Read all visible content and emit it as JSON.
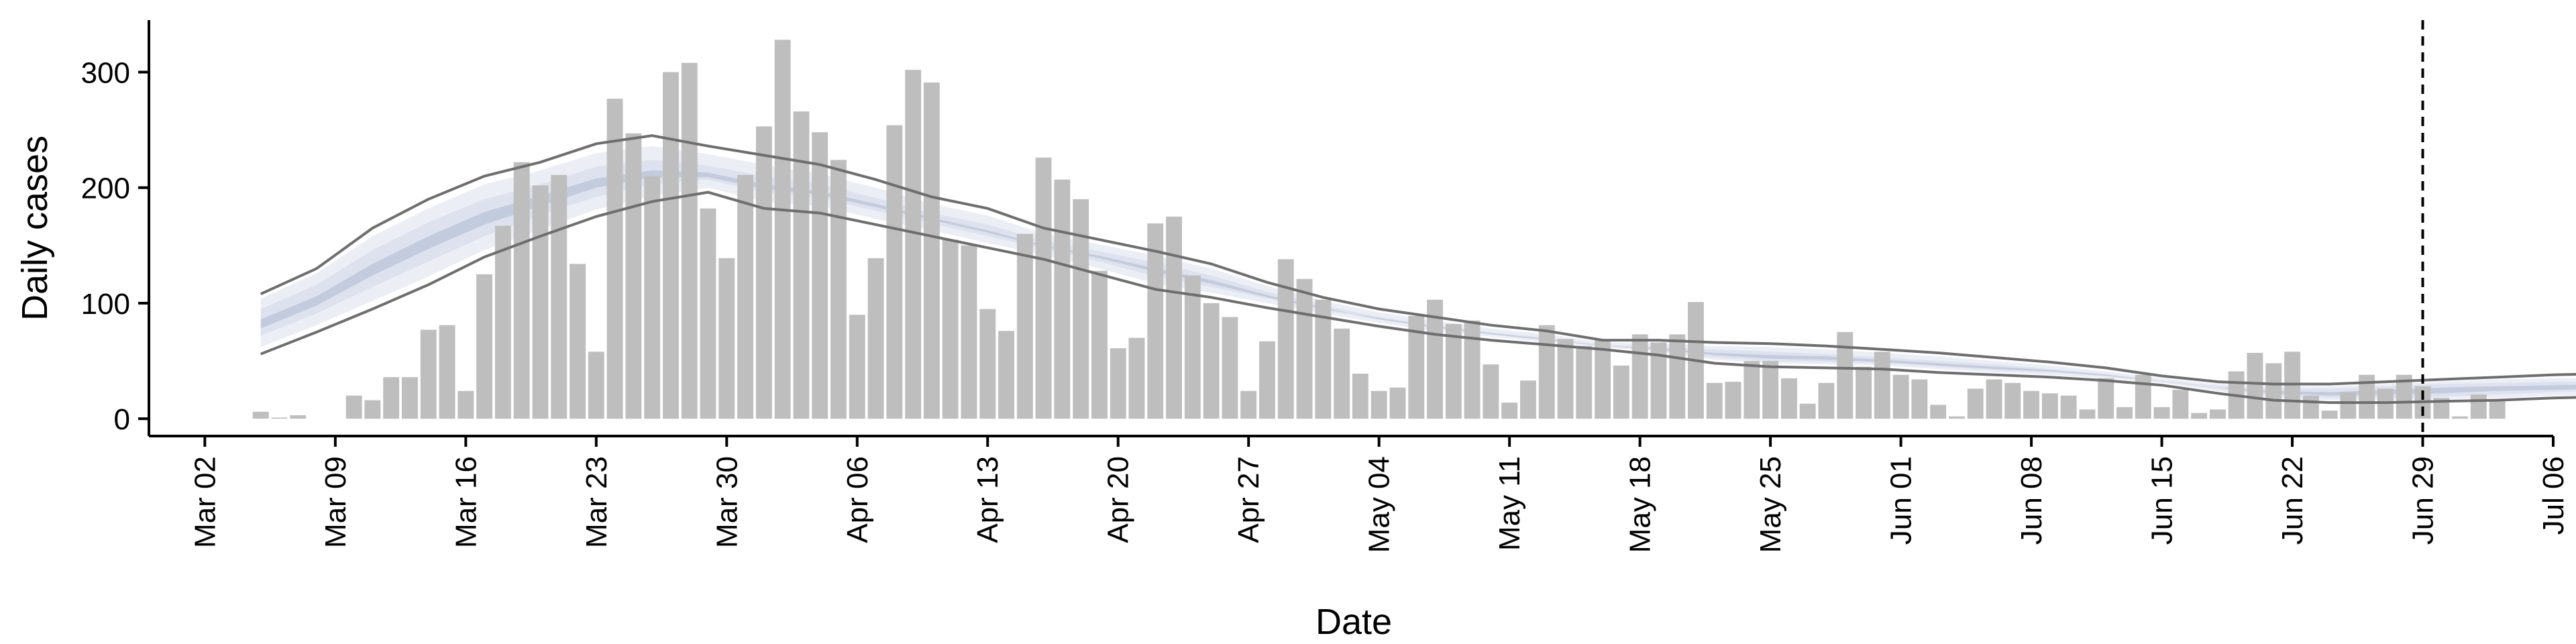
{
  "chart_data": {
    "type": "bar",
    "xlabel": "Date",
    "ylabel": "Daily cases",
    "x_ticks": [
      "Mar 02",
      "Mar 09",
      "Mar 16",
      "Mar 23",
      "Mar 30",
      "Apr 06",
      "Apr 13",
      "Apr 20",
      "Apr 27",
      "May 04",
      "May 11",
      "May 18",
      "May 25",
      "Jun 01",
      "Jun 08",
      "Jun 15",
      "Jun 22",
      "Jun 29",
      "Jul 06"
    ],
    "y_ticks": [
      "0",
      "100",
      "200",
      "300"
    ],
    "ylim": [
      -15,
      345
    ],
    "xlim": [
      "2020-02-28",
      "2020-07-06"
    ],
    "grid": false,
    "cutoff_date": "2020-06-29",
    "colors": {
      "bars": "#bebebe",
      "band_outer": "#eceef5",
      "band_mid": "#dde2ee",
      "band_inner": "#c3cbde",
      "interval_lines": "#6e6e6e"
    },
    "bar_start_date": "2020-03-05",
    "bar_values": [
      6,
      1,
      3,
      0,
      0,
      20,
      16,
      36,
      36,
      77,
      81,
      24,
      125,
      167,
      222,
      202,
      211,
      134,
      58,
      277,
      247,
      210,
      300,
      308,
      182,
      139,
      211,
      253,
      328,
      266,
      248,
      224,
      90,
      139,
      254,
      302,
      291,
      155,
      150,
      95,
      76,
      160,
      226,
      207,
      190,
      128,
      61,
      70,
      169,
      175,
      124,
      100,
      88,
      24,
      67,
      138,
      121,
      103,
      78,
      39,
      24,
      27,
      89,
      103,
      82,
      85,
      47,
      14,
      33,
      81,
      69,
      63,
      68,
      46,
      73,
      66,
      73,
      101,
      31,
      32,
      50,
      50,
      35,
      13,
      31,
      75,
      45,
      58,
      38,
      34,
      12,
      2,
      26,
      34,
      31,
      24,
      22,
      20,
      8,
      35,
      10,
      38,
      10,
      25,
      5,
      8,
      41,
      57,
      48,
      58,
      20,
      7,
      23,
      38,
      26,
      38,
      28,
      18,
      2,
      21,
      16
    ],
    "band_start_date": "2020-03-05",
    "band_end_date": "2020-06-19",
    "upper_line": [
      [
        0,
        108
      ],
      [
        3,
        130
      ],
      [
        6,
        165
      ],
      [
        9,
        190
      ],
      [
        12,
        210
      ],
      [
        15,
        222
      ],
      [
        18,
        238
      ],
      [
        21,
        245
      ],
      [
        24,
        236
      ],
      [
        27,
        228
      ],
      [
        30,
        220
      ],
      [
        33,
        207
      ],
      [
        36,
        192
      ],
      [
        39,
        182
      ],
      [
        42,
        165
      ],
      [
        45,
        155
      ],
      [
        48,
        145
      ],
      [
        51,
        134
      ],
      [
        54,
        118
      ],
      [
        57,
        105
      ],
      [
        60,
        95
      ],
      [
        63,
        88
      ],
      [
        66,
        81
      ],
      [
        69,
        76
      ],
      [
        72,
        68
      ],
      [
        75,
        68
      ],
      [
        78,
        66
      ],
      [
        81,
        65
      ],
      [
        84,
        63
      ],
      [
        87,
        60
      ],
      [
        90,
        57
      ],
      [
        93,
        53
      ],
      [
        96,
        49
      ],
      [
        99,
        44
      ],
      [
        102,
        37
      ],
      [
        105,
        32
      ],
      [
        108,
        30
      ],
      [
        111,
        30
      ],
      [
        114,
        32
      ],
      [
        117,
        34
      ],
      [
        120,
        36
      ],
      [
        123,
        38
      ],
      [
        126,
        39
      ],
      [
        129,
        38
      ],
      [
        132,
        36
      ],
      [
        135,
        34
      ],
      [
        138,
        33
      ],
      [
        141,
        33
      ],
      [
        144,
        32
      ],
      [
        147,
        32
      ],
      [
        150,
        31
      ],
      [
        153,
        31
      ]
    ],
    "lower_line": [
      [
        0,
        56
      ],
      [
        3,
        75
      ],
      [
        6,
        95
      ],
      [
        9,
        116
      ],
      [
        12,
        140
      ],
      [
        15,
        158
      ],
      [
        18,
        175
      ],
      [
        21,
        188
      ],
      [
        24,
        196
      ],
      [
        27,
        182
      ],
      [
        30,
        178
      ],
      [
        33,
        168
      ],
      [
        36,
        158
      ],
      [
        39,
        148
      ],
      [
        42,
        138
      ],
      [
        45,
        125
      ],
      [
        48,
        112
      ],
      [
        51,
        105
      ],
      [
        54,
        96
      ],
      [
        57,
        88
      ],
      [
        60,
        80
      ],
      [
        63,
        73
      ],
      [
        66,
        68
      ],
      [
        69,
        64
      ],
      [
        72,
        60
      ],
      [
        75,
        55
      ],
      [
        78,
        48
      ],
      [
        81,
        45
      ],
      [
        84,
        44
      ],
      [
        87,
        43
      ],
      [
        90,
        40
      ],
      [
        93,
        38
      ],
      [
        96,
        36
      ],
      [
        99,
        33
      ],
      [
        102,
        29
      ],
      [
        105,
        22
      ],
      [
        108,
        16
      ],
      [
        111,
        14
      ],
      [
        114,
        14
      ],
      [
        117,
        15
      ],
      [
        120,
        16
      ],
      [
        123,
        18
      ],
      [
        126,
        19
      ],
      [
        129,
        20
      ],
      [
        132,
        21
      ],
      [
        135,
        21
      ],
      [
        138,
        21
      ],
      [
        141,
        21
      ],
      [
        144,
        21
      ],
      [
        147,
        22
      ],
      [
        150,
        22
      ],
      [
        153,
        22
      ]
    ],
    "band_outer_upper": [
      [
        0,
        104
      ],
      [
        3,
        126
      ],
      [
        6,
        158
      ],
      [
        9,
        182
      ],
      [
        12,
        203
      ],
      [
        15,
        215
      ],
      [
        18,
        230
      ],
      [
        21,
        236
      ],
      [
        24,
        229
      ],
      [
        27,
        220
      ],
      [
        30,
        212
      ],
      [
        33,
        200
      ],
      [
        36,
        186
      ],
      [
        39,
        176
      ],
      [
        42,
        160
      ],
      [
        45,
        151
      ],
      [
        48,
        141
      ],
      [
        51,
        130
      ],
      [
        54,
        115
      ],
      [
        57,
        102
      ],
      [
        60,
        92
      ],
      [
        63,
        85
      ],
      [
        66,
        78
      ],
      [
        69,
        73
      ],
      [
        72,
        66
      ],
      [
        75,
        65
      ],
      [
        78,
        63
      ],
      [
        81,
        62
      ],
      [
        84,
        60
      ],
      [
        87,
        57
      ],
      [
        90,
        54
      ],
      [
        93,
        50
      ],
      [
        96,
        46
      ],
      [
        99,
        41
      ],
      [
        102,
        35
      ],
      [
        105,
        30
      ],
      [
        108,
        28
      ],
      [
        111,
        28
      ],
      [
        114,
        30
      ],
      [
        117,
        32
      ],
      [
        120,
        34
      ],
      [
        123,
        35
      ],
      [
        126,
        35
      ],
      [
        129,
        34
      ],
      [
        132,
        32
      ],
      [
        135,
        31
      ],
      [
        138,
        30
      ],
      [
        141,
        30
      ],
      [
        144,
        30
      ],
      [
        147,
        30
      ],
      [
        150,
        29
      ],
      [
        153,
        29
      ]
    ],
    "band_outer_lower": [
      [
        0,
        62
      ],
      [
        3,
        81
      ],
      [
        6,
        102
      ],
      [
        9,
        123
      ],
      [
        12,
        146
      ],
      [
        15,
        164
      ],
      [
        18,
        181
      ],
      [
        21,
        193
      ],
      [
        24,
        200
      ],
      [
        27,
        188
      ],
      [
        30,
        184
      ],
      [
        33,
        173
      ],
      [
        36,
        163
      ],
      [
        39,
        152
      ],
      [
        42,
        142
      ],
      [
        45,
        130
      ],
      [
        48,
        117
      ],
      [
        51,
        109
      ],
      [
        54,
        100
      ],
      [
        57,
        91
      ],
      [
        60,
        83
      ],
      [
        63,
        76
      ],
      [
        66,
        71
      ],
      [
        69,
        66
      ],
      [
        72,
        62
      ],
      [
        75,
        58
      ],
      [
        78,
        51
      ],
      [
        81,
        48
      ],
      [
        84,
        47
      ],
      [
        87,
        46
      ],
      [
        90,
        43
      ],
      [
        93,
        40
      ],
      [
        96,
        38
      ],
      [
        99,
        35
      ],
      [
        102,
        31
      ],
      [
        105,
        24
      ],
      [
        108,
        18
      ],
      [
        111,
        16
      ],
      [
        114,
        16
      ],
      [
        117,
        17
      ],
      [
        120,
        18
      ],
      [
        123,
        20
      ],
      [
        126,
        21
      ],
      [
        129,
        22
      ],
      [
        132,
        23
      ],
      [
        135,
        23
      ],
      [
        138,
        23
      ],
      [
        141,
        23
      ],
      [
        144,
        23
      ],
      [
        147,
        24
      ],
      [
        150,
        24
      ],
      [
        153,
        24
      ]
    ],
    "band_mid_upper": [
      [
        0,
        95
      ],
      [
        3,
        116
      ],
      [
        6,
        146
      ],
      [
        9,
        170
      ],
      [
        12,
        190
      ],
      [
        15,
        203
      ],
      [
        18,
        218
      ],
      [
        21,
        224
      ],
      [
        24,
        219
      ],
      [
        27,
        210
      ],
      [
        30,
        203
      ],
      [
        33,
        191
      ],
      [
        36,
        178
      ],
      [
        39,
        168
      ],
      [
        42,
        154
      ],
      [
        45,
        145
      ],
      [
        48,
        135
      ],
      [
        51,
        124
      ],
      [
        54,
        110
      ],
      [
        57,
        98
      ],
      [
        60,
        88
      ],
      [
        63,
        81
      ],
      [
        66,
        75
      ],
      [
        69,
        70
      ],
      [
        72,
        64
      ],
      [
        75,
        62
      ],
      [
        78,
        60
      ],
      [
        81,
        58
      ],
      [
        84,
        56
      ],
      [
        87,
        53
      ],
      [
        90,
        50
      ],
      [
        93,
        47
      ],
      [
        96,
        43
      ],
      [
        99,
        39
      ],
      [
        102,
        33
      ],
      [
        105,
        28
      ],
      [
        108,
        26
      ],
      [
        111,
        26
      ],
      [
        114,
        28
      ],
      [
        117,
        30
      ],
      [
        120,
        31
      ],
      [
        123,
        32
      ],
      [
        126,
        32
      ],
      [
        129,
        31
      ],
      [
        132,
        30
      ],
      [
        135,
        29
      ],
      [
        138,
        28
      ],
      [
        141,
        28
      ],
      [
        144,
        28
      ],
      [
        147,
        28
      ],
      [
        150,
        28
      ],
      [
        153,
        28
      ]
    ],
    "band_mid_lower": [
      [
        0,
        72
      ],
      [
        3,
        91
      ],
      [
        6,
        114
      ],
      [
        9,
        136
      ],
      [
        12,
        158
      ],
      [
        15,
        176
      ],
      [
        18,
        192
      ],
      [
        21,
        203
      ],
      [
        24,
        207
      ],
      [
        27,
        196
      ],
      [
        30,
        191
      ],
      [
        33,
        180
      ],
      [
        36,
        169
      ],
      [
        39,
        158
      ],
      [
        42,
        147
      ],
      [
        45,
        136
      ],
      [
        48,
        123
      ],
      [
        51,
        114
      ],
      [
        54,
        104
      ],
      [
        57,
        94
      ],
      [
        60,
        86
      ],
      [
        63,
        79
      ],
      [
        66,
        73
      ],
      [
        69,
        68
      ],
      [
        72,
        63
      ],
      [
        75,
        59
      ],
      [
        78,
        53
      ],
      [
        81,
        50
      ],
      [
        84,
        49
      ],
      [
        87,
        48
      ],
      [
        90,
        45
      ],
      [
        93,
        42
      ],
      [
        96,
        40
      ],
      [
        99,
        37
      ],
      [
        102,
        32
      ],
      [
        105,
        26
      ],
      [
        108,
        20
      ],
      [
        111,
        18
      ],
      [
        114,
        18
      ],
      [
        117,
        19
      ],
      [
        120,
        21
      ],
      [
        123,
        23
      ],
      [
        126,
        24
      ],
      [
        129,
        25
      ],
      [
        132,
        25
      ],
      [
        135,
        25
      ],
      [
        138,
        25
      ],
      [
        141,
        25
      ],
      [
        144,
        25
      ],
      [
        147,
        26
      ],
      [
        150,
        26
      ],
      [
        153,
        26
      ]
    ],
    "band_inner_upper": [
      [
        0,
        86
      ],
      [
        3,
        106
      ],
      [
        6,
        134
      ],
      [
        9,
        158
      ],
      [
        12,
        179
      ],
      [
        15,
        193
      ],
      [
        18,
        208
      ],
      [
        21,
        215
      ],
      [
        24,
        213
      ],
      [
        27,
        203
      ],
      [
        30,
        197
      ],
      [
        33,
        186
      ],
      [
        36,
        174
      ],
      [
        39,
        163
      ],
      [
        42,
        150
      ],
      [
        45,
        141
      ],
      [
        48,
        130
      ],
      [
        51,
        120
      ],
      [
        54,
        107
      ],
      [
        57,
        96
      ],
      [
        60,
        86
      ],
      [
        63,
        79
      ],
      [
        66,
        73
      ],
      [
        69,
        68
      ],
      [
        72,
        63
      ],
      [
        75,
        61
      ],
      [
        78,
        57
      ],
      [
        81,
        55
      ],
      [
        84,
        54
      ],
      [
        87,
        51
      ],
      [
        90,
        48
      ],
      [
        93,
        45
      ],
      [
        96,
        42
      ],
      [
        99,
        38
      ],
      [
        102,
        32
      ],
      [
        105,
        27
      ],
      [
        108,
        24
      ],
      [
        111,
        23
      ],
      [
        114,
        25
      ],
      [
        117,
        27
      ],
      [
        120,
        28
      ],
      [
        123,
        29
      ],
      [
        126,
        30
      ],
      [
        129,
        29
      ],
      [
        132,
        28
      ],
      [
        135,
        27
      ],
      [
        138,
        27
      ],
      [
        141,
        27
      ],
      [
        144,
        27
      ],
      [
        147,
        27
      ],
      [
        150,
        27
      ],
      [
        153,
        27
      ]
    ],
    "band_inner_lower": [
      [
        0,
        78
      ],
      [
        3,
        98
      ],
      [
        6,
        124
      ],
      [
        9,
        147
      ],
      [
        12,
        168
      ],
      [
        15,
        184
      ],
      [
        18,
        200
      ],
      [
        21,
        209
      ],
      [
        24,
        209
      ],
      [
        27,
        199
      ],
      [
        30,
        194
      ],
      [
        33,
        183
      ],
      [
        36,
        172
      ],
      [
        39,
        161
      ],
      [
        42,
        149
      ],
      [
        45,
        139
      ],
      [
        48,
        127
      ],
      [
        51,
        117
      ],
      [
        54,
        105
      ],
      [
        57,
        95
      ],
      [
        60,
        87
      ],
      [
        63,
        80
      ],
      [
        66,
        74
      ],
      [
        69,
        69
      ],
      [
        72,
        63
      ],
      [
        75,
        60
      ],
      [
        78,
        55
      ],
      [
        81,
        52
      ],
      [
        84,
        51
      ],
      [
        87,
        49
      ],
      [
        90,
        46
      ],
      [
        93,
        43
      ],
      [
        96,
        41
      ],
      [
        99,
        37
      ],
      [
        102,
        32
      ],
      [
        105,
        27
      ],
      [
        108,
        22
      ],
      [
        111,
        20
      ],
      [
        114,
        21
      ],
      [
        117,
        22
      ],
      [
        120,
        24
      ],
      [
        123,
        25
      ],
      [
        126,
        26
      ],
      [
        129,
        26
      ],
      [
        132,
        26
      ],
      [
        135,
        26
      ],
      [
        138,
        26
      ],
      [
        141,
        26
      ],
      [
        144,
        26
      ],
      [
        147,
        26
      ],
      [
        150,
        26
      ],
      [
        153,
        26
      ]
    ]
  }
}
